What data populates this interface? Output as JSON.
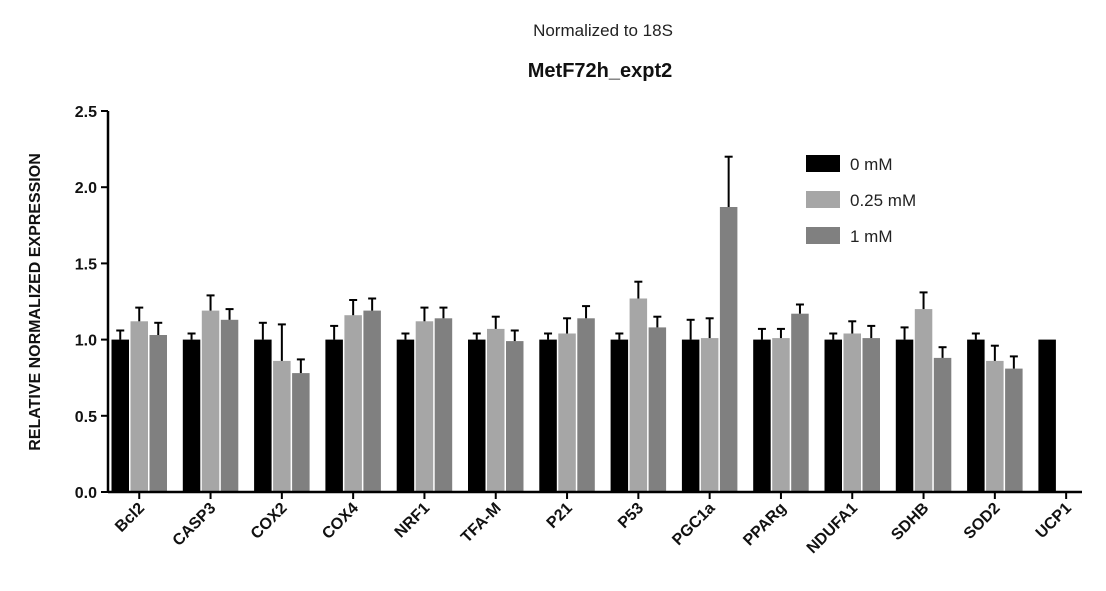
{
  "chart_data": {
    "type": "bar",
    "subtitle": "Normalized to 18S",
    "title": "MetF72h_expt2",
    "ylabel": "RELATIVE NORMALIZED EXPRESSION",
    "xlabel": "",
    "ylim": [
      0,
      2.5
    ],
    "yticks": [
      "0.0",
      "0.5",
      "1.0",
      "1.5",
      "2.0",
      "2.5"
    ],
    "ytick_values": [
      0,
      0.5,
      1.0,
      1.5,
      2.0,
      2.5
    ],
    "grid": false,
    "legend_position": "top-right",
    "categories": [
      "Bcl2",
      "CASP3",
      "COX2",
      "COX4",
      "NRF1",
      "TFA-M",
      "P21",
      "P53",
      "PGC1a",
      "PPARg",
      "NDUFA1",
      "SDHB",
      "SOD2",
      "UCP1"
    ],
    "series": [
      {
        "name": "0 mM",
        "color": "#000000",
        "values": [
          1.0,
          1.0,
          1.0,
          1.0,
          1.0,
          1.0,
          1.0,
          1.0,
          1.0,
          1.0,
          1.0,
          1.0,
          1.0,
          1.0
        ],
        "errors": [
          0.06,
          0.04,
          0.11,
          0.09,
          0.04,
          0.04,
          0.04,
          0.04,
          0.13,
          0.07,
          0.04,
          0.08,
          0.04,
          0.0
        ]
      },
      {
        "name": "0.25 mM",
        "color": "#a6a6a6",
        "values": [
          1.12,
          1.19,
          0.86,
          1.16,
          1.12,
          1.07,
          1.04,
          1.27,
          1.01,
          1.01,
          1.04,
          1.2,
          0.86,
          null
        ],
        "errors": [
          0.09,
          0.1,
          0.24,
          0.1,
          0.09,
          0.08,
          0.1,
          0.11,
          0.13,
          0.06,
          0.08,
          0.11,
          0.1,
          null
        ]
      },
      {
        "name": "1 mM",
        "color": "#808080",
        "values": [
          1.03,
          1.13,
          0.78,
          1.19,
          1.14,
          0.99,
          1.14,
          1.08,
          1.87,
          1.17,
          1.01,
          0.88,
          0.81,
          null
        ],
        "errors": [
          0.08,
          0.07,
          0.09,
          0.08,
          0.07,
          0.07,
          0.08,
          0.07,
          0.33,
          0.06,
          0.08,
          0.07,
          0.08,
          null
        ]
      }
    ]
  }
}
